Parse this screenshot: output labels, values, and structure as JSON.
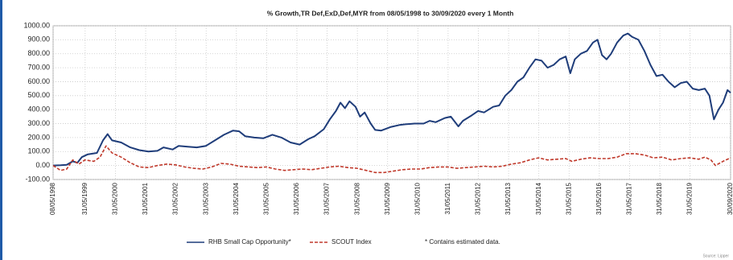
{
  "chart_data": {
    "type": "line",
    "title": "% Growth,TR Def,ExD,Def,MYR from 08/05/1998 to 30/09/2020 every 1 Month",
    "note": "*  Contains estimated data.",
    "source": "Source: Lipper",
    "xlim": [
      1998.35,
      2020.75
    ],
    "xticks": [
      {
        "value": 1998.35,
        "label": "08/05/1998"
      },
      {
        "value": 1999.41,
        "label": "31/05/1999"
      },
      {
        "value": 2000.41,
        "label": "31/05/2000"
      },
      {
        "value": 2001.41,
        "label": "31/05/2001"
      },
      {
        "value": 2002.41,
        "label": "31/05/2002"
      },
      {
        "value": 2003.41,
        "label": "31/05/2003"
      },
      {
        "value": 2004.41,
        "label": "31/05/2004"
      },
      {
        "value": 2005.41,
        "label": "31/05/2005"
      },
      {
        "value": 2006.41,
        "label": "31/05/2006"
      },
      {
        "value": 2007.41,
        "label": "31/05/2007"
      },
      {
        "value": 2008.41,
        "label": "31/05/2008"
      },
      {
        "value": 2009.41,
        "label": "31/05/2009"
      },
      {
        "value": 2010.41,
        "label": "31/05/2010"
      },
      {
        "value": 2011.41,
        "label": "31/05/2011"
      },
      {
        "value": 2012.41,
        "label": "31/05/2012"
      },
      {
        "value": 2013.41,
        "label": "31/05/2013"
      },
      {
        "value": 2014.41,
        "label": "31/05/2014"
      },
      {
        "value": 2015.41,
        "label": "31/05/2015"
      },
      {
        "value": 2016.41,
        "label": "31/05/2016"
      },
      {
        "value": 2017.41,
        "label": "31/05/2017"
      },
      {
        "value": 2018.41,
        "label": "31/05/2018"
      },
      {
        "value": 2019.41,
        "label": "31/05/2019"
      },
      {
        "value": 2020.75,
        "label": "30/09/2020"
      }
    ],
    "ylim": [
      -100,
      1000
    ],
    "yticks": [
      {
        "value": -100,
        "label": "-100.00"
      },
      {
        "value": 0,
        "label": "0.00"
      },
      {
        "value": 100,
        "label": "100.00"
      },
      {
        "value": 200,
        "label": "200.00"
      },
      {
        "value": 300,
        "label": "300.00"
      },
      {
        "value": 400,
        "label": "400.00"
      },
      {
        "value": 500,
        "label": "500.00"
      },
      {
        "value": 600,
        "label": "600.00"
      },
      {
        "value": 700,
        "label": "700.00"
      },
      {
        "value": 800,
        "label": "800.00"
      },
      {
        "value": 900,
        "label": "900.00"
      },
      {
        "value": 1000,
        "label": "1000.00"
      }
    ],
    "grid": true,
    "series": [
      {
        "name": "RHB Small Cap Opportunity*",
        "color": "#1f3d7a",
        "line_style": "solid",
        "x": [
          1998.35,
          1998.6,
          1998.8,
          1999.0,
          1999.15,
          1999.3,
          1999.5,
          1999.8,
          2000.0,
          2000.15,
          2000.3,
          2000.6,
          2000.9,
          2001.2,
          2001.5,
          2001.8,
          2002.0,
          2002.3,
          2002.5,
          2002.8,
          2003.1,
          2003.4,
          2003.7,
          2004.0,
          2004.3,
          2004.5,
          2004.7,
          2005.0,
          2005.3,
          2005.6,
          2005.9,
          2006.2,
          2006.5,
          2006.8,
          2007.0,
          2007.3,
          2007.5,
          2007.7,
          2007.85,
          2008.0,
          2008.15,
          2008.35,
          2008.5,
          2008.65,
          2008.85,
          2009.0,
          2009.2,
          2009.5,
          2009.8,
          2010.0,
          2010.3,
          2010.6,
          2010.8,
          2011.0,
          2011.3,
          2011.5,
          2011.75,
          2011.9,
          2012.2,
          2012.4,
          2012.6,
          2012.9,
          2013.1,
          2013.3,
          2013.5,
          2013.7,
          2013.9,
          2014.1,
          2014.3,
          2014.5,
          2014.7,
          2014.9,
          2015.1,
          2015.3,
          2015.45,
          2015.6,
          2015.8,
          2016.0,
          2016.2,
          2016.35,
          2016.5,
          2016.65,
          2016.8,
          2017.0,
          2017.2,
          2017.35,
          2017.5,
          2017.7,
          2017.9,
          2018.1,
          2018.3,
          2018.5,
          2018.7,
          2018.9,
          2019.1,
          2019.3,
          2019.5,
          2019.7,
          2019.9,
          2020.05,
          2020.2,
          2020.35,
          2020.5,
          2020.65,
          2020.75
        ],
        "values": [
          0,
          2,
          5,
          30,
          20,
          60,
          80,
          90,
          180,
          225,
          180,
          165,
          130,
          110,
          100,
          105,
          130,
          115,
          140,
          135,
          130,
          140,
          180,
          220,
          250,
          245,
          210,
          200,
          195,
          220,
          200,
          165,
          150,
          190,
          210,
          260,
          330,
          390,
          450,
          410,
          460,
          420,
          350,
          380,
          300,
          255,
          250,
          275,
          290,
          295,
          300,
          300,
          320,
          310,
          340,
          350,
          280,
          320,
          360,
          390,
          380,
          420,
          430,
          500,
          540,
          600,
          630,
          700,
          760,
          750,
          700,
          720,
          760,
          780,
          660,
          760,
          800,
          820,
          880,
          900,
          790,
          760,
          800,
          880,
          930,
          945,
          920,
          900,
          820,
          720,
          640,
          650,
          600,
          560,
          590,
          600,
          550,
          540,
          550,
          500,
          330,
          400,
          450,
          540,
          520
        ]
      },
      {
        "name": "SCOUT  Index",
        "color": "#c0392b",
        "line_style": "dashed",
        "x": [
          1998.35,
          1998.6,
          1998.8,
          1999.0,
          1999.2,
          1999.4,
          1999.7,
          1999.9,
          2000.1,
          2000.3,
          2000.6,
          2000.9,
          2001.2,
          2001.5,
          2001.8,
          2002.1,
          2002.4,
          2002.7,
          2003.0,
          2003.3,
          2003.6,
          2003.9,
          2004.2,
          2004.5,
          2004.8,
          2005.1,
          2005.4,
          2005.7,
          2006.0,
          2006.3,
          2006.6,
          2006.9,
          2007.2,
          2007.5,
          2007.8,
          2008.1,
          2008.4,
          2008.7,
          2009.0,
          2009.3,
          2009.6,
          2009.9,
          2010.2,
          2010.5,
          2010.8,
          2011.1,
          2011.4,
          2011.7,
          2012.0,
          2012.3,
          2012.6,
          2012.9,
          2013.2,
          2013.5,
          2013.8,
          2014.1,
          2014.4,
          2014.7,
          2015.0,
          2015.3,
          2015.5,
          2015.8,
          2016.1,
          2016.4,
          2016.7,
          2017.0,
          2017.3,
          2017.6,
          2017.9,
          2018.2,
          2018.5,
          2018.8,
          2019.1,
          2019.4,
          2019.7,
          2019.9,
          2020.1,
          2020.25,
          2020.5,
          2020.75
        ],
        "values": [
          0,
          -35,
          -25,
          40,
          10,
          40,
          30,
          60,
          140,
          90,
          60,
          20,
          -10,
          -15,
          0,
          10,
          5,
          -10,
          -20,
          -25,
          -10,
          15,
          10,
          -5,
          -10,
          -15,
          -10,
          -25,
          -35,
          -30,
          -25,
          -30,
          -20,
          -10,
          -5,
          -15,
          -20,
          -35,
          -50,
          -50,
          -40,
          -30,
          -25,
          -25,
          -15,
          -10,
          -10,
          -20,
          -15,
          -10,
          -5,
          -10,
          -5,
          10,
          20,
          40,
          55,
          40,
          45,
          50,
          30,
          45,
          55,
          50,
          50,
          60,
          85,
          85,
          75,
          55,
          60,
          40,
          50,
          55,
          45,
          60,
          40,
          0,
          30,
          55
        ]
      }
    ]
  }
}
